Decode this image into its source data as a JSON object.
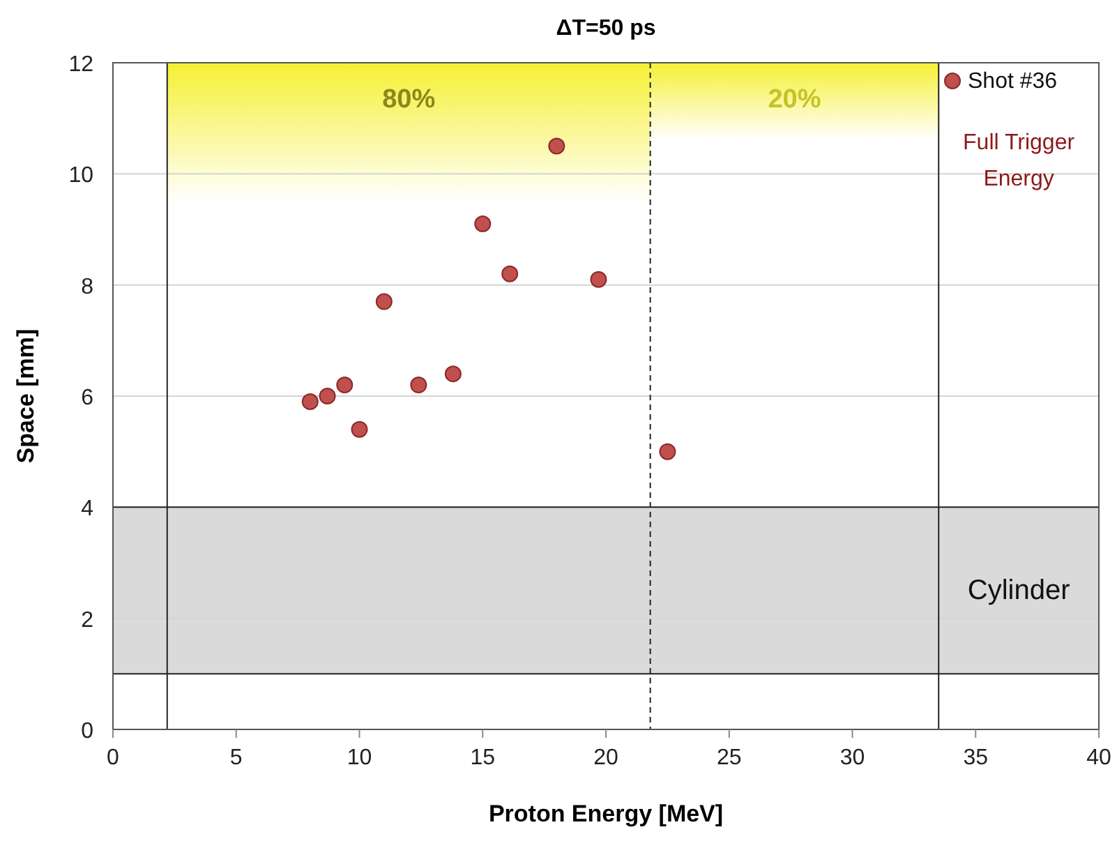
{
  "chart_data": {
    "type": "scatter",
    "title": "ΔT=50 ps",
    "xlabel": "Proton Energy [MeV]",
    "ylabel": "Space [mm]",
    "xlim": [
      0,
      40
    ],
    "xticks": [
      0,
      5,
      10,
      15,
      20,
      25,
      30,
      35,
      40
    ],
    "ylim": [
      0,
      12
    ],
    "yticks": [
      0,
      2,
      4,
      6,
      8,
      10,
      12
    ],
    "grid": "y",
    "legend": "top right",
    "marker": "circle",
    "series": [
      {
        "name": "Shot #36",
        "color": "#c0504d",
        "x": [
          8.0,
          8.7,
          9.4,
          10.0,
          11.0,
          12.4,
          13.8,
          15.0,
          16.1,
          18.0,
          19.7,
          22.5
        ],
        "values": [
          5.9,
          6.0,
          6.2,
          5.4,
          7.7,
          6.2,
          6.4,
          9.1,
          8.2,
          10.5,
          8.1,
          5.0
        ]
      }
    ],
    "bands": [
      {
        "axis": "x",
        "from": 2.2,
        "to": 21.8,
        "label": "80%",
        "color": "#f5f032"
      },
      {
        "axis": "x",
        "from": 21.8,
        "to": 33.5,
        "label": "20%",
        "color": "#f5f032"
      },
      {
        "axis": "y",
        "from": 1,
        "to": 4,
        "label": "Cylinder",
        "color": "#dadada"
      }
    ],
    "ref_lines": [
      {
        "axis": "x",
        "value": 2.2,
        "line_style": "solid"
      },
      {
        "axis": "x",
        "value": 21.8,
        "line_style": "dashed"
      },
      {
        "axis": "x",
        "value": 33.5,
        "line_style": "solid"
      },
      {
        "axis": "y",
        "value": 4,
        "line_style": "solid"
      },
      {
        "axis": "y",
        "value": 1,
        "line_style": "solid"
      }
    ],
    "annotations": [
      "Full Trigger Energy"
    ]
  }
}
